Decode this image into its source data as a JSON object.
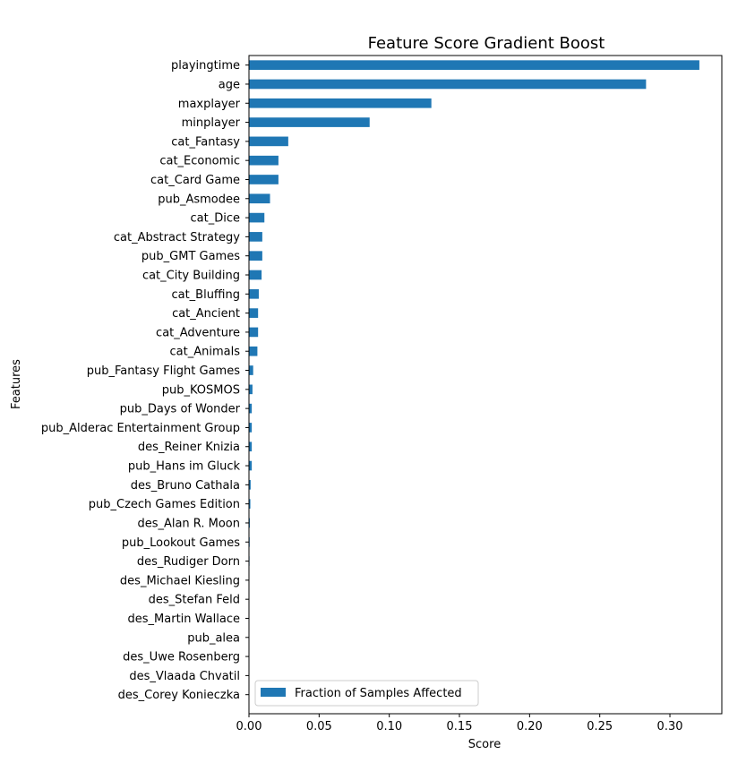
{
  "chart_data": {
    "type": "bar",
    "orientation": "horizontal",
    "title": "Feature Score Gradient Boost",
    "xlabel": "Score",
    "ylabel": "Features",
    "xlim": [
      0,
      0.337
    ],
    "xticks": [
      "0.00",
      "0.05",
      "0.10",
      "0.15",
      "0.20",
      "0.25",
      "0.30"
    ],
    "grid": false,
    "legend_position": "bottom-left",
    "bar_color": "#1f77b4",
    "categories": [
      "playingtime",
      "age",
      "maxplayer",
      "minplayer",
      "cat_Fantasy",
      "cat_Economic",
      "cat_Card Game",
      "pub_Asmodee",
      "cat_Dice",
      "cat_Abstract Strategy",
      "pub_GMT Games",
      "cat_City Building",
      "cat_Bluffing",
      "cat_Ancient",
      "cat_Adventure",
      "cat_Animals",
      "pub_Fantasy Flight Games",
      "pub_KOSMOS",
      "pub_Days of Wonder",
      "pub_Alderac Entertainment Group",
      "des_Reiner Knizia",
      "pub_Hans im Gluck",
      "des_Bruno Cathala",
      "pub_Czech Games Edition",
      "des_Alan R. Moon",
      "pub_Lookout Games",
      "des_Rudiger Dorn",
      "des_Michael Kiesling",
      "des_Stefan Feld",
      "des_Martin Wallace",
      "pub_alea",
      "des_Uwe Rosenberg",
      "des_Vlaada Chvatil",
      "des_Corey Konieczka"
    ],
    "series": [
      {
        "name": "Fraction of Samples Affected",
        "values": [
          0.321,
          0.283,
          0.13,
          0.086,
          0.028,
          0.021,
          0.021,
          0.015,
          0.011,
          0.0095,
          0.0095,
          0.009,
          0.007,
          0.0065,
          0.0065,
          0.006,
          0.003,
          0.0025,
          0.002,
          0.002,
          0.002,
          0.002,
          0.0012,
          0.001,
          0.0006,
          0.0005,
          0.0004,
          0.0003,
          0.0002,
          0.0002,
          0.0001,
          0.0001,
          0.0001,
          0.0001
        ]
      }
    ]
  }
}
